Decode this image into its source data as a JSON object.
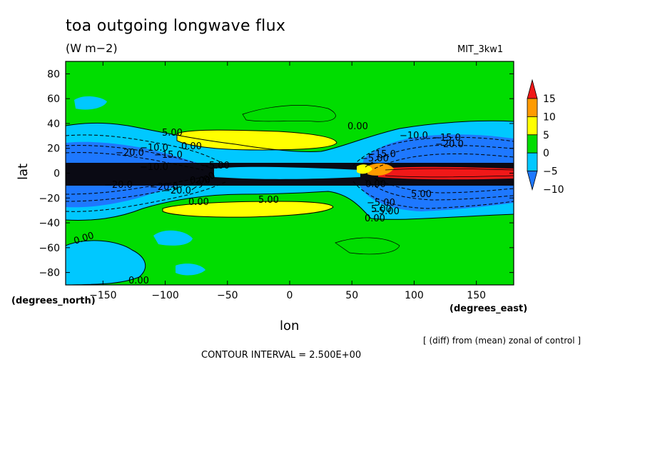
{
  "chart_data": {
    "type": "heatmap",
    "title": "toa outgoing longwave flux",
    "units": "(W m−2)",
    "model": "MIT_3kw1",
    "xlabel": "lon",
    "ylabel": "lat",
    "x_units_label": "(degrees_east)",
    "y_units_label": "(degrees_north)",
    "xlim": [
      -180,
      180
    ],
    "ylim": [
      -90,
      90
    ],
    "x_ticks": [
      -150,
      -100,
      -50,
      0,
      50,
      100,
      150
    ],
    "y_ticks": [
      80,
      60,
      40,
      20,
      0,
      -20,
      -40,
      -60,
      -80
    ],
    "colorbar": {
      "levels": [
        -10,
        -5,
        0,
        5,
        10,
        15
      ],
      "labels": [
        "15",
        "10",
        "5",
        "0",
        "−5",
        "−10"
      ],
      "colors": [
        "#1e78ff",
        "#00c8ff",
        "#00dd00",
        "#ffff00",
        "#ff9b00",
        "#f01818"
      ]
    },
    "contour_labels": [
      "0.00",
      "5.00",
      "0.00",
      "−20.0",
      "−10.0",
      "−15.0",
      "−10.0",
      "−20.0",
      "−5.00",
      "0.00",
      "0.00",
      "5.00",
      "−5.00",
      "0.00",
      "0.00",
      "−20.0",
      "−20.0",
      "0.00",
      "−5.00",
      "−10.0",
      "−15.0",
      "−20.0",
      "−15.0",
      "−5.00",
      "5.00",
      "5.00",
      "−5.00",
      "0.00"
    ],
    "contour_interval_text": "CONTOUR INTERVAL = 2.500E+00",
    "note": "[ (diff) from (mean) zonal of control ]"
  }
}
